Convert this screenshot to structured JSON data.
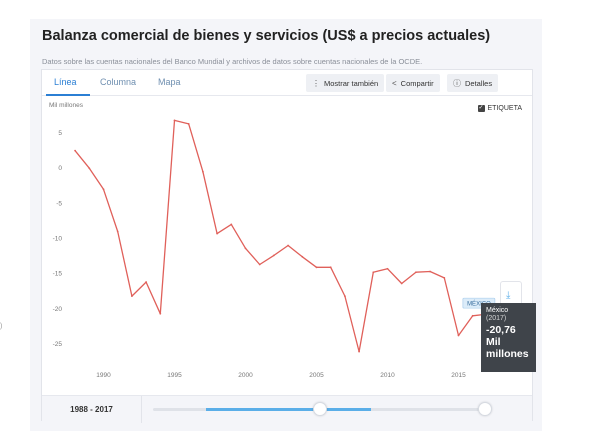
{
  "card": {
    "title": "Balanza comercial de bienes y servicios (US$ a precios actuales)",
    "subtitle": "Datos sobre las cuentas nacionales del Banco Mundial y archivos de datos sobre cuentas nacionales de la OCDE."
  },
  "tabs": [
    {
      "label": "Línea",
      "active": true
    },
    {
      "label": "Columna",
      "active": false
    },
    {
      "label": "Mapa",
      "active": false
    }
  ],
  "toolbar": {
    "show_also": "Mostrar también",
    "share": "Compartir",
    "details": "Detalles"
  },
  "icons": {
    "show_also": "kebab-icon",
    "share": "share-icon",
    "details": "info-icon",
    "checkbox": "check-icon"
  },
  "etiqueta": {
    "label": "ETIQUETA",
    "checked": true
  },
  "chart_data": {
    "type": "line",
    "ylabel": "Mil millones",
    "ylim": [
      -28,
      8
    ],
    "yticks": [
      5,
      0,
      -5,
      -10,
      -15,
      -20,
      -25
    ],
    "xlim": [
      1987.5,
      2017.5
    ],
    "xticks": [
      1990,
      1995,
      2000,
      2005,
      2010,
      2015
    ],
    "color": "#e0605a",
    "series": [
      {
        "name": "MÉXICO",
        "x": [
          1988,
          1989,
          1990,
          1991,
          1992,
          1993,
          1994,
          1995,
          1996,
          1997,
          1998,
          1999,
          2000,
          2001,
          2002,
          2003,
          2004,
          2005,
          2006,
          2007,
          2008,
          2009,
          2010,
          2011,
          2012,
          2013,
          2014,
          2015,
          2016,
          2017
        ],
        "values": [
          2.5,
          0,
          -3,
          -9,
          -18.2,
          -16.2,
          -20.7,
          6.8,
          6.3,
          -0.5,
          -9.3,
          -8,
          -11.4,
          -13.7,
          -12.4,
          -11,
          -12.6,
          -14.1,
          -14.1,
          -18.2,
          -26.1,
          -14.8,
          -14.3,
          -16.4,
          -14.8,
          -14.7,
          -15.6,
          -23.8,
          -21,
          -20.76
        ]
      }
    ]
  },
  "series_label": "MÉXICO",
  "tooltip": {
    "country": "México",
    "year": "(2017)",
    "value": "-20,76",
    "unit": "Mil millones"
  },
  "range": {
    "start": "1988",
    "sep": " - ",
    "end": "2017"
  },
  "side_tab": {
    "icon_top": "download-icon",
    "icon_bottom": "menu-icon"
  }
}
